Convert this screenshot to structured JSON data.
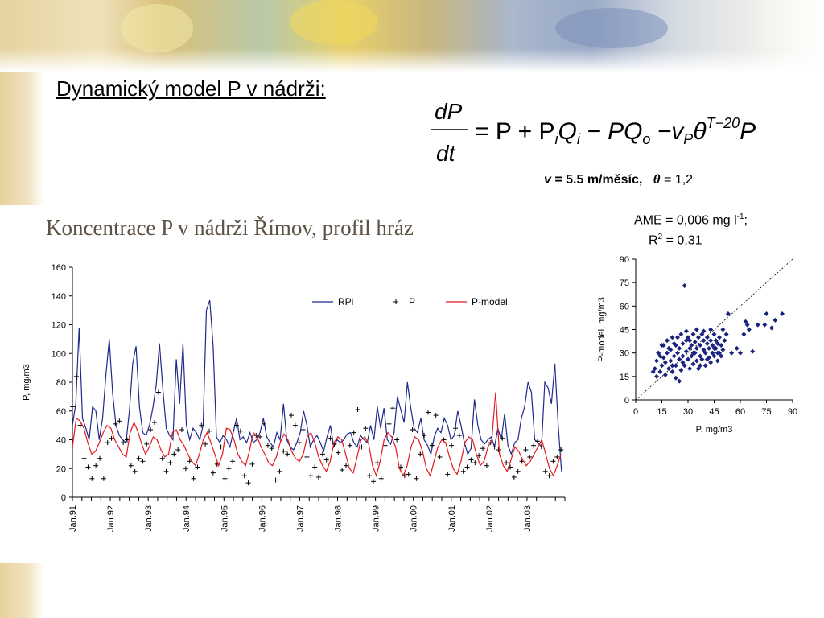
{
  "slide": {
    "title": "Dynamický model P v nádrži:",
    "param_v_symbol": "v",
    "param_v_text": " = 5.5 m/měsíc,",
    "param_theta_symbol": "θ",
    "param_theta_text": " = 1,2",
    "chart_title": "Koncentrace P v nádrži Římov, profil hráz",
    "ame_text_prefix": "AME = 0,006 mg l",
    "ame_sup": "-1",
    "ame_suffix": ";",
    "r2_prefix": "R",
    "r2_sup": "2",
    "r2_value": " = 0,31"
  },
  "equation": {
    "lhs_num": "dP",
    "lhs_den": "dt",
    "rhs": "= P + P",
    "sub_i": "i",
    "q1": "Q",
    "sub_i2": "i",
    "minus_pq": " − PQ",
    "sub_o": "o",
    "minus_v": " −v",
    "sub_p": "P",
    "theta": "θ",
    "exponent": "T−20",
    "final_p": "P"
  },
  "chart_data": [
    {
      "type": "line",
      "ylabel": "P,  mg/m3",
      "xlabel": "",
      "ylim": [
        0,
        160
      ],
      "yticks": [
        0,
        20,
        40,
        60,
        80,
        100,
        120,
        140,
        160
      ],
      "x_tick_labels": [
        "Jan.91",
        "Jan.92",
        "Jan.93",
        "Jan.94",
        "Jan.95",
        "Jan.96",
        "Jan.97",
        "Jan.98",
        "Jan.99",
        "Jan.00",
        "Jan.01",
        "Jan.02",
        "Jan.03"
      ],
      "x_start": "Jan.91",
      "points_per_year": 24,
      "legend": [
        "RPi",
        "P",
        "P-model"
      ],
      "legend_position": "top-right",
      "colors": {
        "RPi": "#1f2a8a",
        "P": "#000000",
        "P-model": "#e3191c"
      },
      "series": [
        {
          "name": "RPi",
          "style": "line",
          "values": [
            50,
            65,
            118,
            55,
            48,
            40,
            63,
            60,
            40,
            55,
            85,
            110,
            72,
            50,
            43,
            40,
            38,
            60,
            93,
            105,
            63,
            45,
            43,
            50,
            62,
            78,
            107,
            75,
            48,
            43,
            40,
            96,
            65,
            107,
            50,
            40,
            48,
            45,
            40,
            50,
            130,
            137,
            105,
            42,
            38,
            43,
            40,
            35,
            45,
            55,
            40,
            42,
            38,
            45,
            38,
            40,
            45,
            55,
            42,
            38,
            35,
            45,
            40,
            65,
            40,
            35,
            33,
            38,
            45,
            60,
            50,
            35,
            40,
            43,
            38,
            32,
            42,
            50,
            35,
            40,
            38,
            40,
            44,
            45,
            38,
            35,
            43,
            40,
            38,
            50,
            40,
            63,
            48,
            62,
            40,
            37,
            45,
            70,
            61,
            52,
            80,
            62,
            48,
            45,
            55,
            40,
            36,
            30,
            42,
            48,
            45,
            55,
            50,
            40,
            43,
            60,
            50,
            38,
            30,
            34,
            68,
            50,
            40,
            37,
            40,
            42,
            35,
            48,
            40,
            58,
            36,
            30,
            38,
            40,
            55,
            63,
            80,
            73,
            40,
            38,
            35,
            80,
            76,
            65,
            93,
            50,
            18
          ],
          "comment": "sampled as visible trace"
        },
        {
          "name": "P",
          "style": "plus",
          "values": [
            63,
            84,
            50,
            27,
            21,
            13,
            22,
            27,
            13,
            38,
            41,
            51,
            53,
            38,
            40,
            22,
            18,
            27,
            25,
            37,
            47,
            52,
            73,
            27,
            18,
            24,
            30,
            33,
            47,
            20,
            25,
            13,
            21,
            50,
            37,
            46,
            17,
            23,
            35,
            13,
            20,
            25,
            50,
            46,
            15,
            10,
            23,
            43,
            42,
            51,
            36,
            34,
            12,
            18,
            32,
            30,
            57,
            50,
            38,
            47,
            28,
            15,
            21,
            14,
            30,
            26,
            41,
            37,
            31,
            19,
            22,
            36,
            45,
            61,
            35,
            48,
            15,
            11,
            24,
            13,
            36,
            51,
            62,
            40,
            21,
            15,
            16,
            47,
            13,
            30,
            43,
            59,
            36,
            57,
            28,
            40,
            16,
            36,
            48,
            43,
            18,
            21,
            26,
            24,
            29,
            34,
            22,
            38,
            35,
            33,
            41,
            24,
            21,
            14,
            18,
            25,
            33,
            28,
            36,
            39,
            35,
            18,
            15,
            25,
            28,
            33
          ],
          "comment": "approximate scatter of measured P"
        },
        {
          "name": "P-model",
          "style": "line",
          "values": [
            35,
            55,
            53,
            48,
            38,
            30,
            32,
            38,
            45,
            50,
            48,
            40,
            35,
            30,
            28,
            45,
            52,
            46,
            37,
            30,
            35,
            42,
            40,
            33,
            28,
            30,
            45,
            47,
            40,
            36,
            30,
            25,
            22,
            30,
            40,
            45,
            38,
            30,
            22,
            30,
            48,
            47,
            40,
            30,
            25,
            22,
            32,
            45,
            42,
            35,
            30,
            24,
            22,
            28,
            38,
            44,
            40,
            32,
            27,
            25,
            30,
            42,
            45,
            38,
            28,
            22,
            18,
            25,
            38,
            42,
            40,
            30,
            20,
            17,
            28,
            40,
            42,
            37,
            22,
            15,
            25,
            40,
            45,
            42,
            35,
            20,
            15,
            22,
            35,
            42,
            40,
            32,
            20,
            15,
            25,
            35,
            40,
            38,
            28,
            20,
            16,
            25,
            38,
            42,
            40,
            30,
            22,
            25,
            35,
            40,
            73,
            30,
            22,
            18,
            26,
            35,
            32,
            26,
            22,
            25,
            30,
            35,
            40,
            30,
            20,
            15,
            22,
            30
          ],
          "comment": "approximate model trace"
        }
      ]
    },
    {
      "type": "scatter",
      "xlabel": "P, mg/m3",
      "ylabel": "P-model, mg/m3",
      "xlim": [
        0,
        90
      ],
      "ylim": [
        0,
        90
      ],
      "xticks": [
        0,
        15,
        30,
        45,
        60,
        75,
        90
      ],
      "yticks": [
        0,
        15,
        30,
        45,
        60,
        75,
        90
      ],
      "one_to_one_line": true,
      "marker_color": "#1a237e",
      "points": [
        [
          11,
          20
        ],
        [
          12,
          25
        ],
        [
          13,
          30
        ],
        [
          14,
          18
        ],
        [
          15,
          22
        ],
        [
          16,
          27
        ],
        [
          16,
          35
        ],
        [
          17,
          24
        ],
        [
          18,
          30
        ],
        [
          18,
          38
        ],
        [
          19,
          20
        ],
        [
          20,
          25
        ],
        [
          20,
          32
        ],
        [
          21,
          40
        ],
        [
          21,
          18
        ],
        [
          22,
          28
        ],
        [
          22,
          36
        ],
        [
          23,
          14
        ],
        [
          23,
          22
        ],
        [
          24,
          30
        ],
        [
          24,
          40
        ],
        [
          25,
          26
        ],
        [
          25,
          33
        ],
        [
          26,
          19
        ],
        [
          26,
          42
        ],
        [
          27,
          28
        ],
        [
          27,
          36
        ],
        [
          28,
          73
        ],
        [
          28,
          22
        ],
        [
          29,
          31
        ],
        [
          29,
          38
        ],
        [
          30,
          26
        ],
        [
          30,
          40
        ],
        [
          31,
          20
        ],
        [
          31,
          33
        ],
        [
          32,
          35
        ],
        [
          32,
          28
        ],
        [
          33,
          42
        ],
        [
          33,
          23
        ],
        [
          34,
          30
        ],
        [
          34,
          37
        ],
        [
          35,
          25
        ],
        [
          35,
          33
        ],
        [
          36,
          40
        ],
        [
          36,
          20
        ],
        [
          37,
          28
        ],
        [
          37,
          35
        ],
        [
          38,
          42
        ],
        [
          38,
          26
        ],
        [
          39,
          32
        ],
        [
          39,
          38
        ],
        [
          40,
          22
        ],
        [
          40,
          30
        ],
        [
          41,
          36
        ],
        [
          41,
          40
        ],
        [
          42,
          27
        ],
        [
          42,
          33
        ],
        [
          43,
          38
        ],
        [
          43,
          24
        ],
        [
          44,
          30
        ],
        [
          44,
          35
        ],
        [
          45,
          42
        ],
        [
          45,
          28
        ],
        [
          46,
          33
        ],
        [
          46,
          38
        ],
        [
          47,
          25
        ],
        [
          47,
          36
        ],
        [
          48,
          40
        ],
        [
          48,
          30
        ],
        [
          49,
          35
        ],
        [
          50,
          45
        ],
        [
          50,
          32
        ],
        [
          51,
          38
        ],
        [
          52,
          42
        ],
        [
          53,
          55
        ],
        [
          55,
          30
        ],
        [
          58,
          33
        ],
        [
          60,
          30
        ],
        [
          62,
          42
        ],
        [
          63,
          50
        ],
        [
          64,
          48
        ],
        [
          65,
          45
        ],
        [
          67,
          31
        ],
        [
          70,
          48
        ],
        [
          74,
          48
        ],
        [
          75,
          55
        ],
        [
          78,
          46
        ],
        [
          80,
          51
        ],
        [
          84,
          55
        ],
        [
          10,
          18
        ],
        [
          12,
          15
        ],
        [
          14,
          28
        ],
        [
          15,
          35
        ],
        [
          17,
          16
        ],
        [
          19,
          33
        ],
        [
          21,
          22
        ],
        [
          23,
          35
        ],
        [
          25,
          12
        ],
        [
          27,
          24
        ],
        [
          29,
          44
        ],
        [
          31,
          38
        ],
        [
          33,
          30
        ],
        [
          35,
          45
        ],
        [
          37,
          22
        ],
        [
          39,
          44
        ],
        [
          41,
          26
        ],
        [
          43,
          45
        ],
        [
          45,
          33
        ],
        [
          47,
          30
        ],
        [
          49,
          28
        ]
      ]
    }
  ]
}
